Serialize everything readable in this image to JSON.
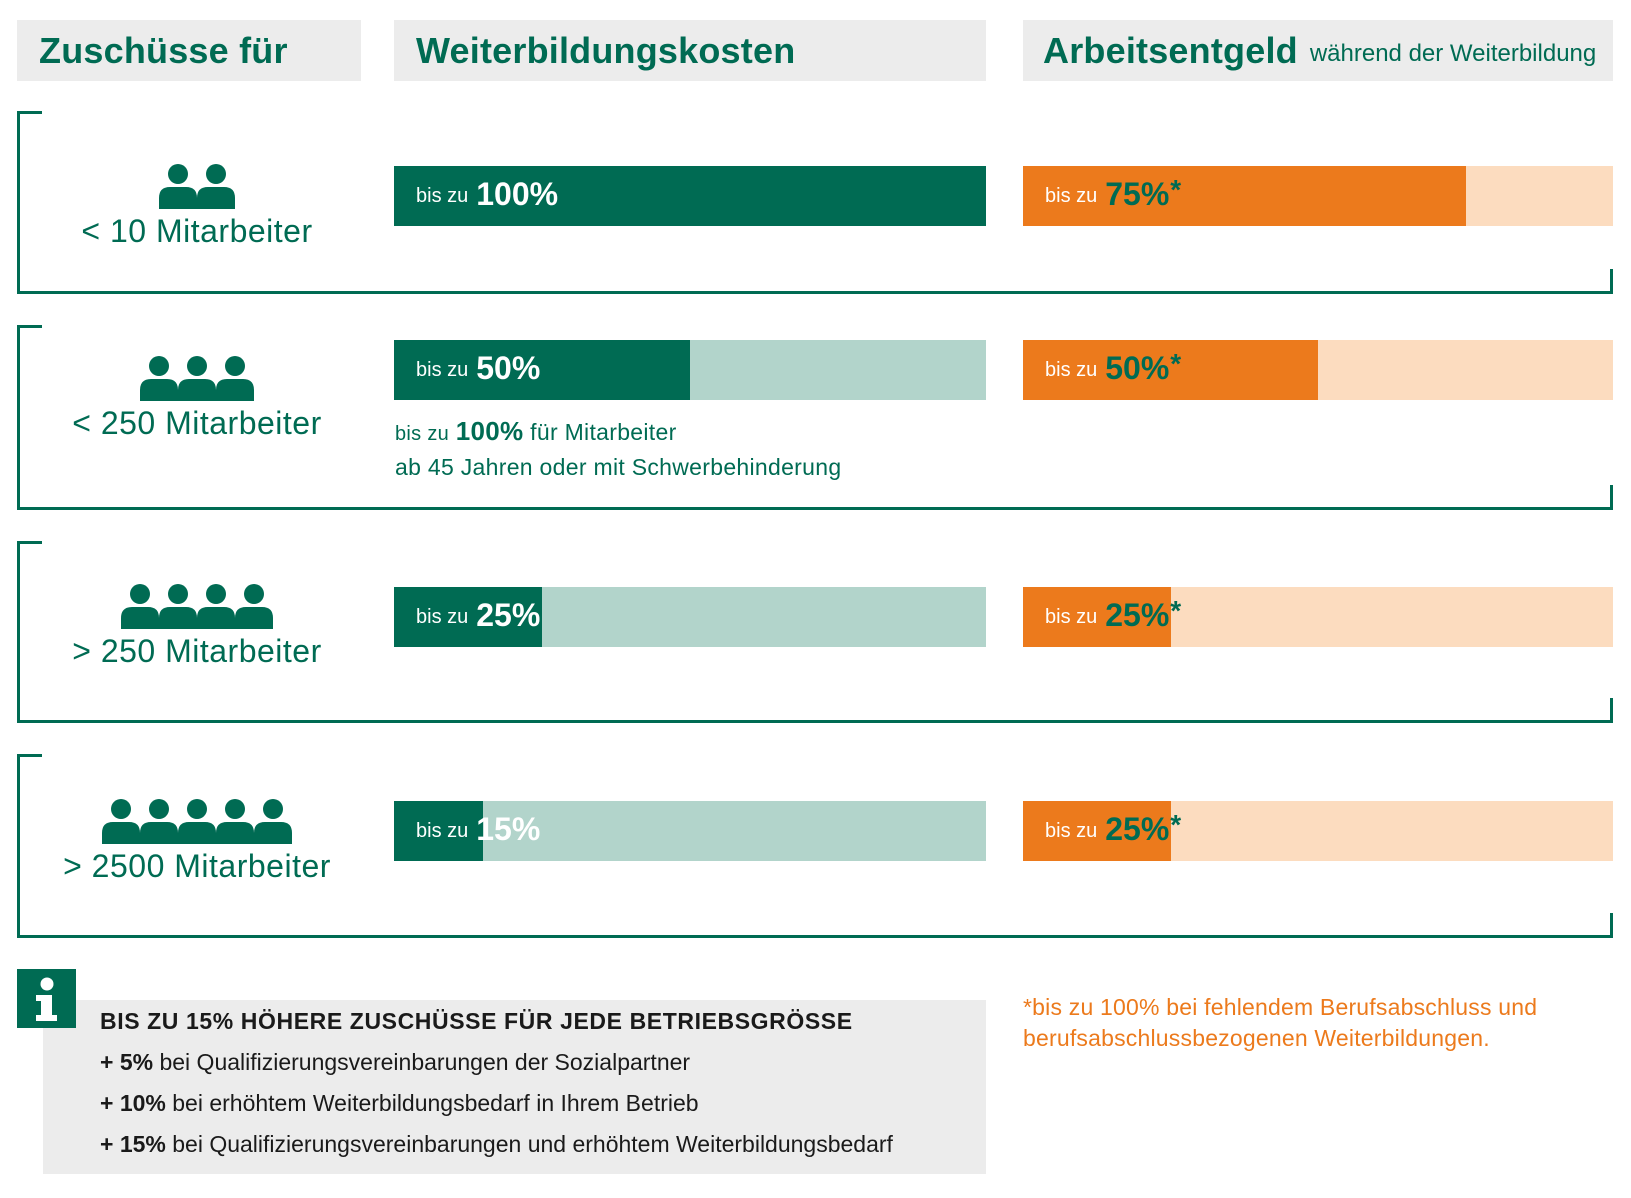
{
  "headers": {
    "col1": "Zuschüsse für",
    "col2": "Weiterbildungskosten",
    "col3_title": "Arbeitsentgeld",
    "col3_sub": "während der Weiterbildung"
  },
  "bar_prefix": "bis zu",
  "star": "*",
  "rows": [
    {
      "label": "< 10 Mitarbeiter",
      "people": 2,
      "kosten": "100%",
      "entgeld": "75%"
    },
    {
      "label": "< 250 Mitarbeiter",
      "people": 3,
      "kosten": "50%",
      "entgeld": "50%",
      "note_prefix": "bis zu",
      "note_value": "100%",
      "note_rest": "für Mitarbeiter",
      "note_line2": "ab 45 Jahren oder mit Schwerbehinderung"
    },
    {
      "label": "> 250 Mitarbeiter",
      "people": 4,
      "kosten": "25%",
      "entgeld": "25%"
    },
    {
      "label": "> 2500 Mitarbeiter",
      "people": 5,
      "kosten": "15%",
      "entgeld": "25%"
    }
  ],
  "chart_data": {
    "type": "bar",
    "categories": [
      "< 10 Mitarbeiter",
      "< 250 Mitarbeiter",
      "> 250 Mitarbeiter",
      "> 2500 Mitarbeiter"
    ],
    "series": [
      {
        "name": "Weiterbildungskosten",
        "values": [
          100,
          50,
          25,
          15
        ]
      },
      {
        "name": "Arbeitsentgeld",
        "values": [
          75,
          50,
          25,
          25
        ]
      }
    ],
    "ylim": [
      0,
      100
    ],
    "colors": {
      "kosten_fill": "#006b53",
      "kosten_track": "#b2d4cb",
      "entgeld_fill": "#ec7a1c",
      "entgeld_track": "#fcdcbf"
    }
  },
  "info": {
    "icon": "info-icon",
    "title": "BIS ZU 15% HÖHERE ZUSCHÜSSE FÜR JEDE BETRIEBSGRÖSSE",
    "items": [
      {
        "value": "+ 5%",
        "text": "bei Qualifizierungsvereinbarungen der Sozialpartner"
      },
      {
        "value": "+ 10%",
        "text": "bei erhöhtem Weiterbildungsbedarf in Ihrem Betrieb"
      },
      {
        "value": "+ 15%",
        "text": "bei Qualifizierungsvereinbarungen und erhöhtem Weiterbildungsbedarf"
      }
    ]
  },
  "footnote": {
    "line1": "*bis zu 100% bei fehlendem Berufsabschluss und",
    "line2": "berufsabschlussbezogenen Weiterbildungen."
  }
}
